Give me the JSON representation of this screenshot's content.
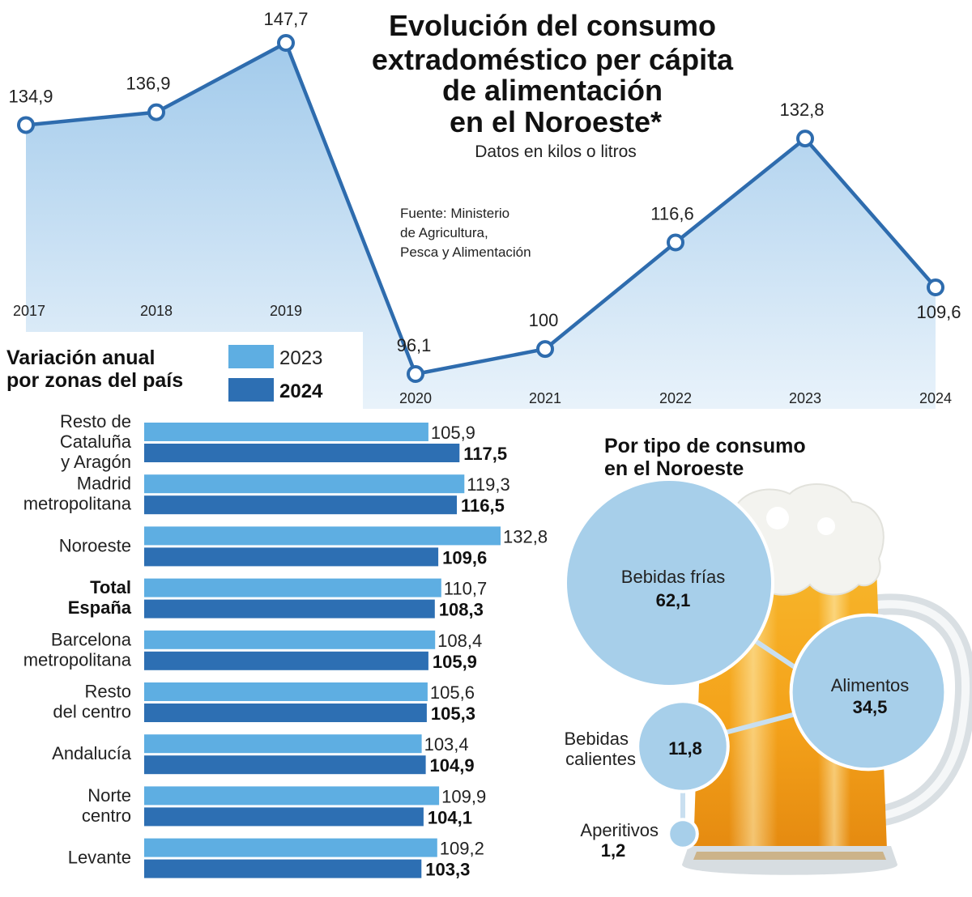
{
  "title_lines": [
    "Evolución del consumo",
    "extradoméstico per cápita",
    "de alimentación",
    "en el Noroeste*"
  ],
  "subtitle": "Datos en kilos o litros",
  "source_lines": [
    "Fuente: Ministerio",
    "de Agricultura,",
    "Pesca y Alimentación"
  ],
  "colors": {
    "line": "#2e6cae",
    "area_top": "#9cc7ea",
    "bar_2023": "#5eaee2",
    "bar_2024": "#2d6fb3",
    "bubble": "#a7cfea"
  },
  "chart_data": [
    {
      "type": "line",
      "x": [
        "2017",
        "2018",
        "2019",
        "2020",
        "2021",
        "2022",
        "2023",
        "2024"
      ],
      "series": [
        {
          "values": [
            134.9,
            136.9,
            147.7,
            96.1,
            100,
            116.6,
            132.8,
            109.6
          ]
        }
      ],
      "value_labels": [
        "134,9",
        "136,9",
        "147,7",
        "96,1",
        "100",
        "116,6",
        "132,8",
        "109,6"
      ]
    },
    {
      "type": "bar",
      "title_lines": [
        "Variación anual",
        "por zonas del país"
      ],
      "legend": [
        "2023",
        "2024"
      ],
      "categories": [
        {
          "lines": [
            "Resto de",
            "Cataluña",
            "y Aragón"
          ],
          "bold": false
        },
        {
          "lines": [
            "Madrid",
            "metropolitana"
          ],
          "bold": false
        },
        {
          "lines": [
            "Noroeste"
          ],
          "bold": false
        },
        {
          "lines": [
            "Total",
            "España"
          ],
          "bold": true
        },
        {
          "lines": [
            "Barcelona",
            "metropolitana"
          ],
          "bold": false
        },
        {
          "lines": [
            "Resto",
            "del centro"
          ],
          "bold": false
        },
        {
          "lines": [
            "Andalucía"
          ],
          "bold": false
        },
        {
          "lines": [
            "Norte",
            "centro"
          ],
          "bold": false
        },
        {
          "lines": [
            "Levante"
          ],
          "bold": false
        }
      ],
      "series": [
        {
          "name": "2023",
          "values": [
            105.9,
            119.3,
            132.8,
            110.7,
            108.4,
            105.6,
            103.4,
            109.9,
            109.2
          ],
          "labels": [
            "105,9",
            "119,3",
            "132,8",
            "110,7",
            "108,4",
            "105,6",
            "103,4",
            "109,9",
            "109,2"
          ]
        },
        {
          "name": "2024",
          "values": [
            117.5,
            116.5,
            109.6,
            108.3,
            105.9,
            105.3,
            104.9,
            104.1,
            103.3
          ],
          "labels": [
            "117,5",
            "116,5",
            "109,6",
            "108,3",
            "105,9",
            "105,3",
            "104,9",
            "104,1",
            "103,3"
          ]
        }
      ]
    },
    {
      "type": "bubble",
      "title_lines": [
        "Por tipo de consumo",
        "en el Noroeste"
      ],
      "items": [
        {
          "name_lines": [
            "Bebidas frías"
          ],
          "value": 62.1,
          "label": "62,1"
        },
        {
          "name_lines": [
            "Alimentos"
          ],
          "value": 34.5,
          "label": "34,5"
        },
        {
          "name_lines": [
            "Bebidas",
            "calientes"
          ],
          "value": 11.8,
          "label": "11,8"
        },
        {
          "name_lines": [
            "Aperitivos"
          ],
          "value": 1.2,
          "label": "1,2"
        }
      ]
    }
  ]
}
